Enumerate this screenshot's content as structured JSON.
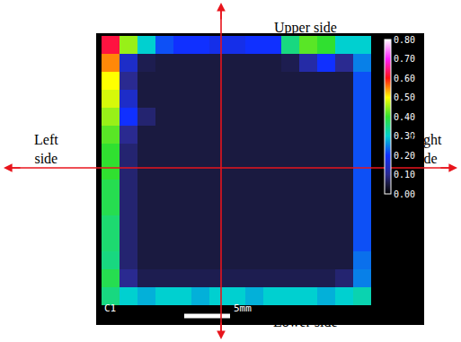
{
  "chart_data": {
    "type": "heatmap",
    "tick_labels": false,
    "annotations": {
      "upper": "Upper side",
      "lower": "Lower side",
      "left": "Left side",
      "right": "Right side",
      "sample": "C1",
      "scale_bar": "5mm"
    },
    "color_range": [
      0,
      0.8
    ],
    "color_ticks": [
      {
        "value": 0,
        "label": "0.00"
      },
      {
        "value": 0.1,
        "label": "0.10"
      },
      {
        "value": 0.2,
        "label": "0.20"
      },
      {
        "value": 0.3,
        "label": "0.30"
      },
      {
        "value": 0.4,
        "label": "0.40"
      },
      {
        "value": 0.5,
        "label": "0.50"
      },
      {
        "value": 0.6,
        "label": "0.60"
      },
      {
        "value": 0.7,
        "label": "0.70"
      },
      {
        "value": 0.8,
        "label": "0.80"
      }
    ],
    "cells": [
      [
        0.62,
        0.45,
        0.3,
        0.22,
        0.2,
        0.2,
        0.18,
        0.18,
        0.2,
        0.2,
        0.35,
        0.42,
        0.4,
        0.3,
        0.3
      ],
      [
        0.55,
        0.15,
        0.06,
        0.05,
        0.05,
        0.05,
        0.05,
        0.05,
        0.05,
        0.05,
        0.06,
        0.12,
        0.2,
        0.1,
        0.25
      ],
      [
        0.5,
        0.1,
        0.05,
        0.05,
        0.05,
        0.05,
        0.05,
        0.05,
        0.05,
        0.05,
        0.05,
        0.05,
        0.05,
        0.05,
        0.22
      ],
      [
        0.48,
        0.15,
        0.05,
        0.05,
        0.05,
        0.05,
        0.05,
        0.05,
        0.05,
        0.05,
        0.05,
        0.05,
        0.05,
        0.05,
        0.22
      ],
      [
        0.45,
        0.2,
        0.08,
        0.05,
        0.05,
        0.05,
        0.05,
        0.05,
        0.05,
        0.05,
        0.05,
        0.05,
        0.05,
        0.05,
        0.22
      ],
      [
        0.42,
        0.1,
        0.05,
        0.05,
        0.05,
        0.05,
        0.05,
        0.05,
        0.05,
        0.05,
        0.05,
        0.05,
        0.05,
        0.05,
        0.22
      ],
      [
        0.4,
        0.08,
        0.05,
        0.05,
        0.05,
        0.05,
        0.05,
        0.05,
        0.05,
        0.05,
        0.05,
        0.05,
        0.05,
        0.05,
        0.22
      ],
      [
        0.4,
        0.08,
        0.05,
        0.05,
        0.05,
        0.05,
        0.05,
        0.05,
        0.05,
        0.05,
        0.05,
        0.05,
        0.05,
        0.05,
        0.22
      ],
      [
        0.38,
        0.08,
        0.05,
        0.05,
        0.05,
        0.05,
        0.05,
        0.05,
        0.05,
        0.05,
        0.05,
        0.05,
        0.05,
        0.05,
        0.22
      ],
      [
        0.38,
        0.08,
        0.05,
        0.05,
        0.05,
        0.05,
        0.05,
        0.05,
        0.05,
        0.05,
        0.05,
        0.05,
        0.05,
        0.05,
        0.22
      ],
      [
        0.36,
        0.08,
        0.05,
        0.05,
        0.05,
        0.05,
        0.05,
        0.05,
        0.05,
        0.05,
        0.05,
        0.05,
        0.05,
        0.05,
        0.22
      ],
      [
        0.36,
        0.08,
        0.05,
        0.05,
        0.05,
        0.05,
        0.05,
        0.05,
        0.05,
        0.05,
        0.05,
        0.05,
        0.05,
        0.05,
        0.22
      ],
      [
        0.35,
        0.08,
        0.05,
        0.05,
        0.05,
        0.05,
        0.05,
        0.05,
        0.05,
        0.05,
        0.05,
        0.05,
        0.05,
        0.05,
        0.24
      ],
      [
        0.38,
        0.1,
        0.06,
        0.06,
        0.06,
        0.06,
        0.06,
        0.06,
        0.06,
        0.06,
        0.06,
        0.06,
        0.06,
        0.08,
        0.25
      ],
      [
        0.35,
        0.3,
        0.28,
        0.3,
        0.3,
        0.28,
        0.3,
        0.3,
        0.28,
        0.3,
        0.3,
        0.3,
        0.28,
        0.3,
        0.32
      ]
    ]
  }
}
